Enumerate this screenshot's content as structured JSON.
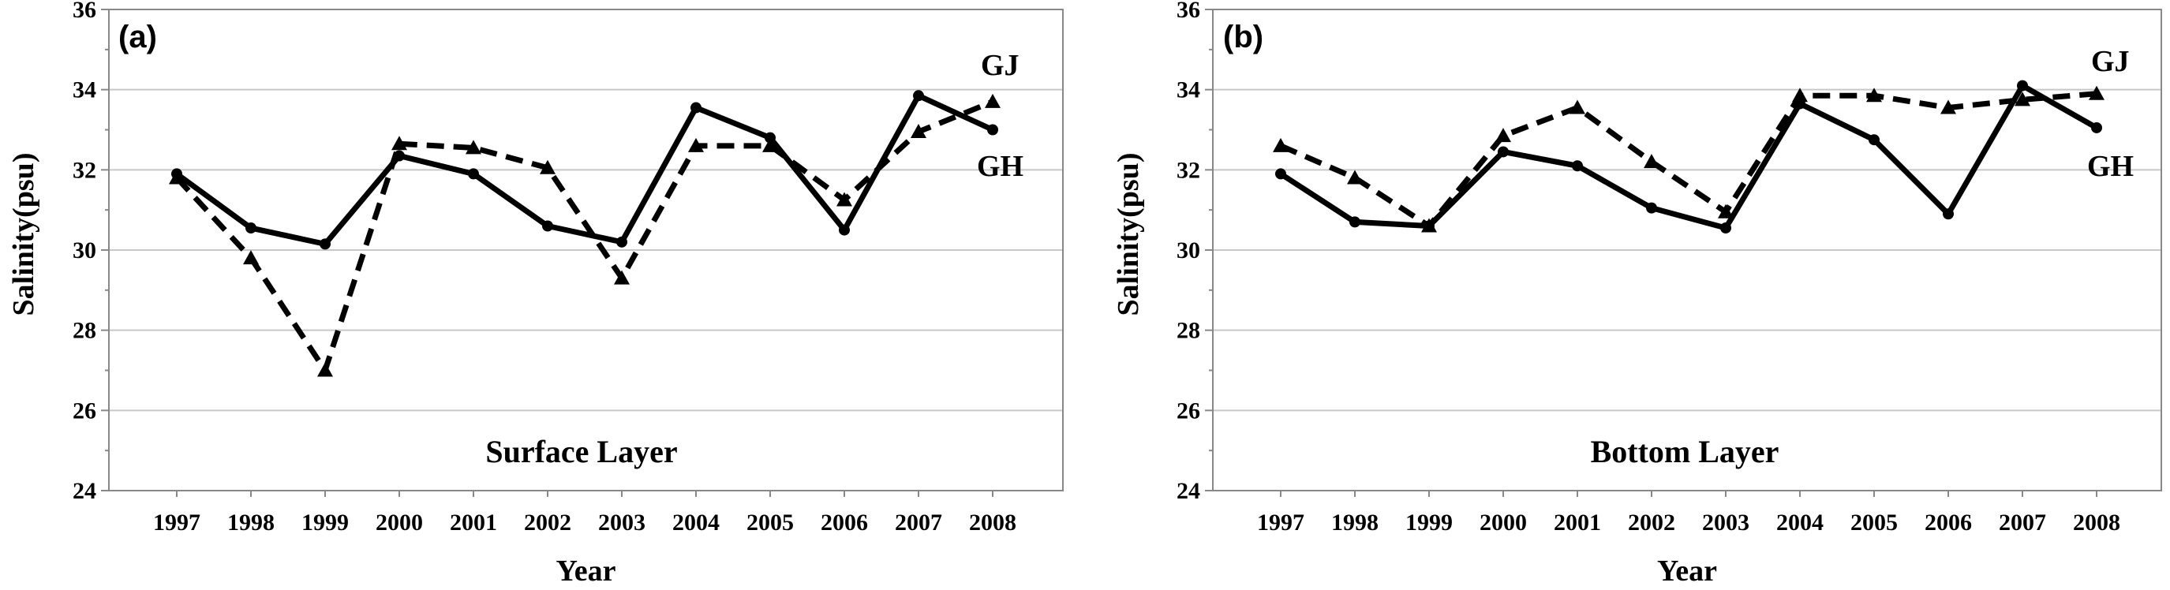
{
  "chart_data": [
    {
      "type": "line",
      "panel_label": "(a)",
      "annotation": "Surface Layer",
      "xlabel": "Year",
      "ylabel": "Salinity(psu)",
      "ylim": [
        24,
        36
      ],
      "yticks": [
        "24",
        "26",
        "28",
        "30",
        "32",
        "34",
        "36"
      ],
      "categories": [
        "1997",
        "1998",
        "1999",
        "2000",
        "2001",
        "2002",
        "2003",
        "2004",
        "2005",
        "2006",
        "2007",
        "2008"
      ],
      "grid": true,
      "series": [
        {
          "name": "GH",
          "style": "solid",
          "marker": "circle",
          "values": [
            31.9,
            30.55,
            30.15,
            32.35,
            31.9,
            30.6,
            30.2,
            33.55,
            32.8,
            30.5,
            33.85,
            33.0
          ]
        },
        {
          "name": "GJ",
          "style": "dashed",
          "marker": "triangle",
          "values": [
            31.8,
            29.8,
            27.0,
            32.65,
            32.55,
            32.05,
            29.3,
            32.6,
            32.6,
            31.25,
            32.95,
            33.7
          ]
        }
      ]
    },
    {
      "type": "line",
      "panel_label": "(b)",
      "annotation": "Bottom Layer",
      "xlabel": "Year",
      "ylabel": "Salinity(psu)",
      "ylim": [
        24,
        36
      ],
      "yticks": [
        "24",
        "26",
        "28",
        "30",
        "32",
        "34",
        "36"
      ],
      "categories": [
        "1997",
        "1998",
        "1999",
        "2000",
        "2001",
        "2002",
        "2003",
        "2004",
        "2005",
        "2006",
        "2007",
        "2008"
      ],
      "grid": true,
      "series": [
        {
          "name": "GH",
          "style": "solid",
          "marker": "circle",
          "values": [
            31.9,
            30.7,
            30.6,
            32.45,
            32.1,
            31.05,
            30.55,
            33.65,
            32.75,
            30.9,
            34.1,
            33.05
          ]
        },
        {
          "name": "GJ",
          "style": "dashed",
          "marker": "triangle",
          "values": [
            32.6,
            31.8,
            30.6,
            32.85,
            33.55,
            32.2,
            30.95,
            33.85,
            33.85,
            33.55,
            33.75,
            33.9
          ]
        }
      ]
    }
  ]
}
